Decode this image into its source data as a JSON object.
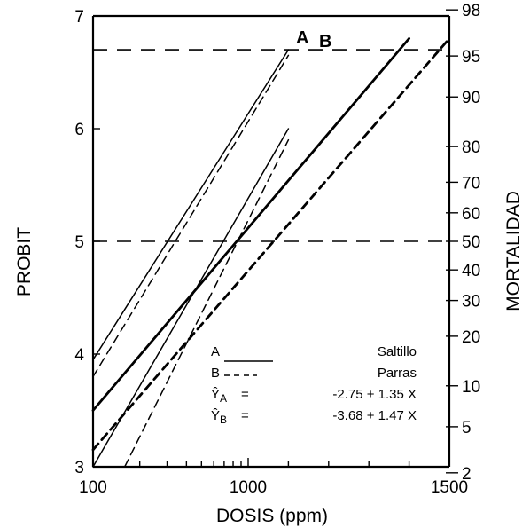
{
  "chart_data": {
    "type": "line",
    "title": "",
    "xlabel": "DOSIS (ppm)",
    "ylabel": "PROBIT",
    "y2label": "MORTALIDAD",
    "xscale": "log",
    "xticklabels": [
      "100",
      "1000",
      "1500"
    ],
    "xlim": [
      100,
      1500
    ],
    "ylim": [
      3,
      7
    ],
    "yticks": [
      "3",
      "4",
      "5",
      "6",
      "7"
    ],
    "y2ticks": [
      "2",
      "5",
      "10",
      "20",
      "30",
      "40",
      "50",
      "60",
      "70",
      "80",
      "90",
      "95",
      "98"
    ],
    "reference_lines": [
      {
        "probit": 5.0,
        "mortality": 50,
        "style": "dashed"
      },
      {
        "probit": 6.7,
        "mortality": 95,
        "style": "dashed"
      }
    ],
    "series": [
      {
        "name": "A",
        "legend": "Saltillo",
        "style": "solid",
        "equation": "Ŷ_A = -2.75 + 1.35 X",
        "x": [
          100,
          1400
        ],
        "y": [
          3.5,
          6.8
        ],
        "ci_upper": {
          "x": [
            100,
            1100
          ],
          "y": [
            3.95,
            6.7
          ]
        },
        "ci_lower": {
          "x": [
            100,
            1100
          ],
          "y": [
            3.0,
            6.0
          ]
        }
      },
      {
        "name": "B",
        "legend": "Parras",
        "style": "dashed",
        "equation": "Ŷ_B = -3.68 + 1.47 X",
        "x": [
          100,
          1500
        ],
        "y": [
          3.15,
          6.8
        ],
        "ci_upper": {
          "x": [
            100,
            1100
          ],
          "y": [
            3.8,
            6.65
          ]
        },
        "ci_lower": {
          "x": [
            160,
            1100
          ],
          "y": [
            3.0,
            5.9
          ]
        }
      }
    ],
    "grid": false,
    "legend": {
      "position": "bottom-right",
      "rows": [
        {
          "key": "A",
          "label": "Saltillo"
        },
        {
          "key": "B",
          "label": "Parras"
        },
        {
          "key": "Ŷ",
          "sub": "A",
          "eq": "=",
          "formula": "-2.75 + 1.35 X"
        },
        {
          "key": "Ŷ",
          "sub": "B",
          "eq": "=",
          "formula": "-3.68 + 1.47 X"
        }
      ]
    }
  }
}
